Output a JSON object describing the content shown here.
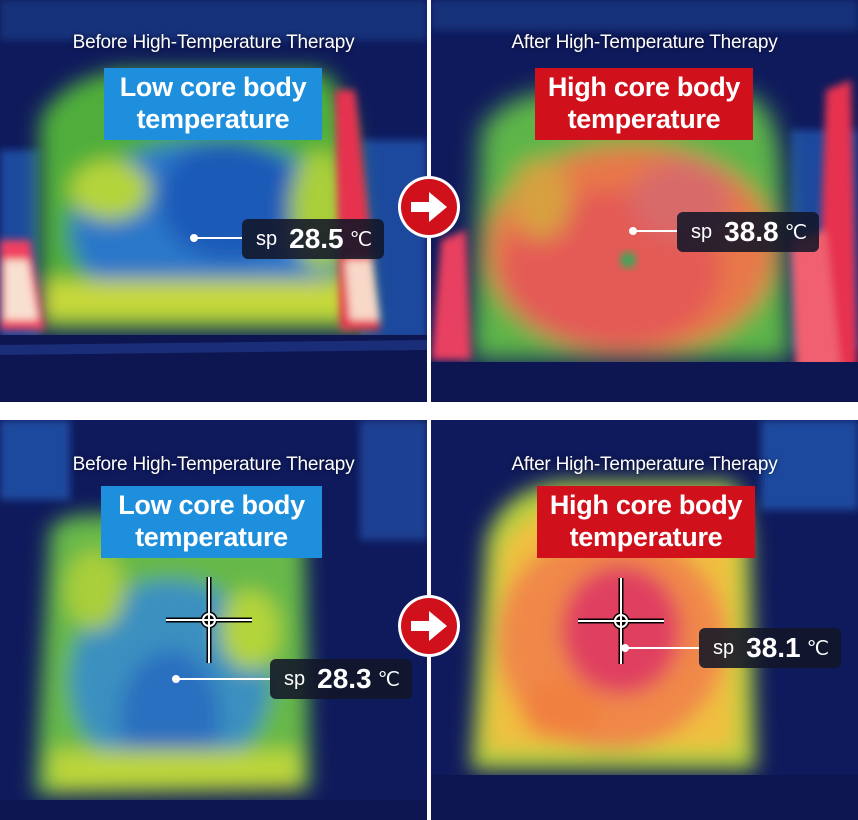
{
  "panels": [
    {
      "caption": "Before High-Temperature Therapy",
      "badge": "Low core body temperature",
      "badge_type": "low",
      "reading": {
        "label": "sp",
        "value": "28.5",
        "unit": "℃"
      }
    },
    {
      "caption": "After High-Temperature Therapy",
      "badge": "High core body temperature",
      "badge_type": "high",
      "reading": {
        "label": "sp",
        "value": "38.8",
        "unit": "℃"
      }
    },
    {
      "caption": "Before High-Temperature Therapy",
      "badge": "Low core body temperature",
      "badge_type": "low",
      "reading": {
        "label": "sp",
        "value": "28.3",
        "unit": "℃"
      }
    },
    {
      "caption": "After High-Temperature Therapy",
      "badge": "High core body temperature",
      "badge_type": "high",
      "reading": {
        "label": "sp",
        "value": "38.1",
        "unit": "℃"
      }
    }
  ],
  "colors": {
    "low_badge": "#1e8fdc",
    "high_badge": "#d0111c",
    "arrow": "#d0111c",
    "thermal_background": "#0f1a5c"
  },
  "icons": [
    "right-arrow-icon",
    "crosshair-icon"
  ]
}
